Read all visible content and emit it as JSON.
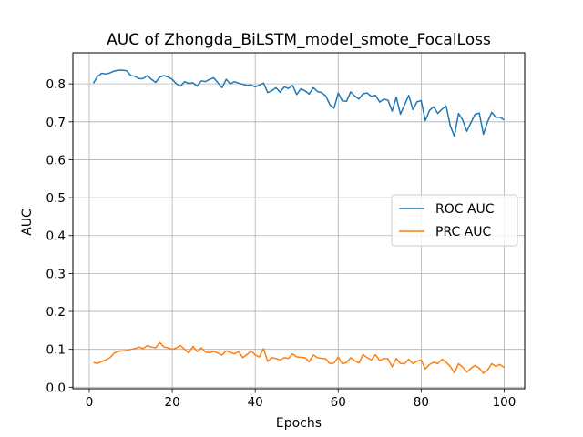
{
  "chart_data": {
    "type": "line",
    "title": "AUC of Zhongda_BiLSTM_model_smote_FocalLoss",
    "xlabel": "Epochs",
    "ylabel": "AUC",
    "xlim": [
      -3.95,
      104.95
    ],
    "ylim": [
      -0.004,
      0.882
    ],
    "xticks": [
      0,
      20,
      40,
      60,
      80,
      100
    ],
    "yticks": [
      0.0,
      0.1,
      0.2,
      0.3,
      0.4,
      0.5,
      0.6,
      0.7,
      0.8
    ],
    "ytick_labels": [
      "0.0",
      "0.1",
      "0.2",
      "0.3",
      "0.4",
      "0.5",
      "0.6",
      "0.7",
      "0.8"
    ],
    "grid": true,
    "legend_position": "center-right",
    "x": [
      1,
      2,
      3,
      4,
      5,
      6,
      7,
      8,
      9,
      10,
      11,
      12,
      13,
      14,
      15,
      16,
      17,
      18,
      19,
      20,
      21,
      22,
      23,
      24,
      25,
      26,
      27,
      28,
      29,
      30,
      31,
      32,
      33,
      34,
      35,
      36,
      37,
      38,
      39,
      40,
      41,
      42,
      43,
      44,
      45,
      46,
      47,
      48,
      49,
      50,
      51,
      52,
      53,
      54,
      55,
      56,
      57,
      58,
      59,
      60,
      61,
      62,
      63,
      64,
      65,
      66,
      67,
      68,
      69,
      70,
      71,
      72,
      73,
      74,
      75,
      76,
      77,
      78,
      79,
      80,
      81,
      82,
      83,
      84,
      85,
      86,
      87,
      88,
      89,
      90,
      91,
      92,
      93,
      94,
      95,
      96,
      97,
      98,
      99,
      100
    ],
    "series": [
      {
        "name": "ROC AUC",
        "color": "#1f77b4",
        "values": [
          0.802,
          0.82,
          0.828,
          0.826,
          0.829,
          0.834,
          0.836,
          0.836,
          0.835,
          0.822,
          0.82,
          0.814,
          0.814,
          0.822,
          0.812,
          0.804,
          0.818,
          0.822,
          0.818,
          0.812,
          0.8,
          0.794,
          0.806,
          0.801,
          0.803,
          0.794,
          0.808,
          0.806,
          0.812,
          0.816,
          0.803,
          0.79,
          0.812,
          0.8,
          0.806,
          0.802,
          0.799,
          0.796,
          0.797,
          0.792,
          0.797,
          0.802,
          0.777,
          0.782,
          0.79,
          0.778,
          0.792,
          0.788,
          0.796,
          0.772,
          0.787,
          0.782,
          0.773,
          0.79,
          0.78,
          0.777,
          0.768,
          0.745,
          0.736,
          0.776,
          0.755,
          0.754,
          0.779,
          0.768,
          0.76,
          0.774,
          0.776,
          0.767,
          0.77,
          0.752,
          0.76,
          0.757,
          0.728,
          0.765,
          0.72,
          0.745,
          0.77,
          0.732,
          0.753,
          0.756,
          0.703,
          0.73,
          0.74,
          0.722,
          0.733,
          0.742,
          0.69,
          0.662,
          0.722,
          0.705,
          0.675,
          0.698,
          0.72,
          0.723,
          0.667,
          0.7,
          0.725,
          0.712,
          0.712,
          0.705
        ]
      },
      {
        "name": "PRC AUC",
        "color": "#ff7f0e",
        "values": [
          0.065,
          0.063,
          0.068,
          0.072,
          0.078,
          0.09,
          0.095,
          0.096,
          0.097,
          0.1,
          0.102,
          0.106,
          0.102,
          0.11,
          0.106,
          0.104,
          0.118,
          0.106,
          0.104,
          0.1,
          0.104,
          0.11,
          0.1,
          0.09,
          0.108,
          0.094,
          0.104,
          0.093,
          0.091,
          0.095,
          0.09,
          0.085,
          0.096,
          0.092,
          0.088,
          0.094,
          0.078,
          0.086,
          0.096,
          0.085,
          0.08,
          0.102,
          0.068,
          0.078,
          0.076,
          0.072,
          0.078,
          0.076,
          0.088,
          0.08,
          0.079,
          0.078,
          0.067,
          0.085,
          0.078,
          0.076,
          0.075,
          0.062,
          0.064,
          0.08,
          0.062,
          0.065,
          0.078,
          0.07,
          0.064,
          0.086,
          0.078,
          0.072,
          0.086,
          0.07,
          0.076,
          0.075,
          0.054,
          0.076,
          0.063,
          0.062,
          0.074,
          0.062,
          0.069,
          0.072,
          0.048,
          0.06,
          0.066,
          0.062,
          0.074,
          0.066,
          0.055,
          0.038,
          0.062,
          0.053,
          0.04,
          0.05,
          0.058,
          0.05,
          0.037,
          0.045,
          0.062,
          0.055,
          0.06,
          0.052
        ]
      }
    ]
  }
}
